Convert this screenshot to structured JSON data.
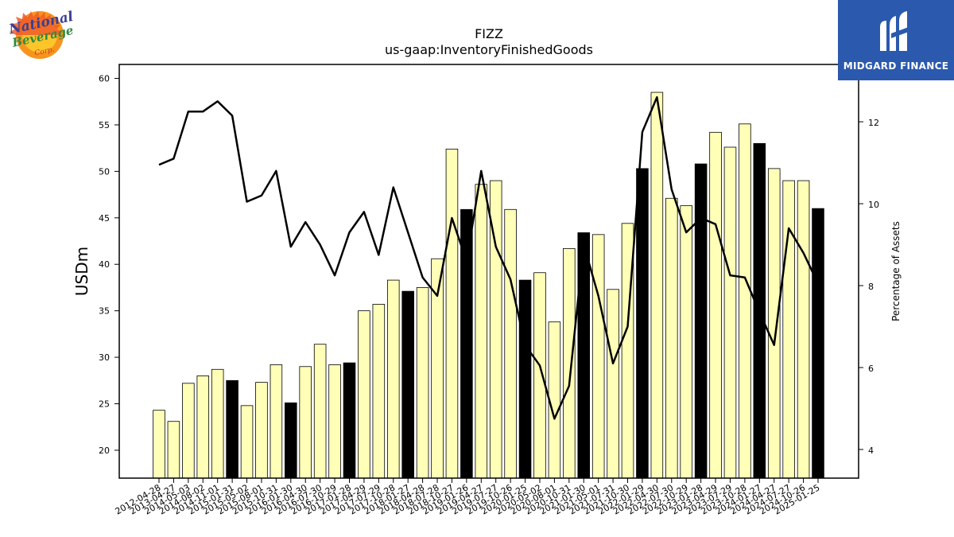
{
  "brand": {
    "corner_logo_text": "MIDGARD FINANCE",
    "corner_logo_bg": "#2b59ad",
    "company_logo_text": "National Beverage Corp."
  },
  "chart_data": {
    "type": "bar+line",
    "title": "FIZZ",
    "subtitle": "us-gaap:InventoryFinishedGoods",
    "ylabel": "USDm",
    "y2label": "Percentage of Assets",
    "ylim": [
      17,
      61.5
    ],
    "y2lim": [
      3.3,
      13.4
    ],
    "yticks": [
      20,
      25,
      30,
      35,
      40,
      45,
      50,
      55,
      60
    ],
    "y2ticks": [
      4,
      6,
      8,
      10,
      12
    ],
    "colors": {
      "bar_normal": "#ffffb8",
      "bar_highlight": "#000000",
      "line": "#000000"
    },
    "categories": [
      "2012-04-28",
      "2013-04-27",
      "2014-05-03",
      "2014-08-02",
      "2014-11-01",
      "2015-01-31",
      "2015-05-02",
      "2015-08-01",
      "2015-10-31",
      "2016-01-30",
      "2016-04-30",
      "2016-07-30",
      "2016-10-29",
      "2017-01-28",
      "2017-04-29",
      "2017-07-29",
      "2017-10-28",
      "2018-01-27",
      "2018-04-28",
      "2018-07-28",
      "2018-10-27",
      "2019-01-26",
      "2019-04-27",
      "2019-07-27",
      "2019-10-26",
      "2020-01-25",
      "2020-05-02",
      "2020-08-01",
      "2020-10-31",
      "2021-01-30",
      "2021-05-01",
      "2021-07-31",
      "2021-10-30",
      "2022-01-29",
      "2022-04-30",
      "2022-07-30",
      "2022-10-29",
      "2023-01-28",
      "2023-04-29",
      "2023-07-29",
      "2023-10-28",
      "2024-01-27",
      "2024-04-27",
      "2024-07-27",
      "2024-10-26",
      "2025-01-25"
    ],
    "values": [
      24.3,
      23.1,
      27.2,
      28.0,
      28.7,
      27.5,
      24.8,
      27.3,
      29.2,
      25.1,
      29.0,
      31.4,
      29.2,
      29.4,
      35.0,
      35.7,
      38.3,
      37.1,
      37.5,
      40.6,
      52.4,
      45.9,
      48.6,
      49.0,
      45.9,
      38.3,
      39.1,
      33.8,
      41.7,
      43.4,
      43.2,
      37.3,
      44.4,
      50.3,
      58.5,
      47.1,
      46.3,
      50.8,
      54.2,
      52.6,
      55.1,
      53.0,
      50.3,
      49.0,
      49.0,
      46.0
    ],
    "highlighted": [
      false,
      false,
      false,
      false,
      false,
      true,
      false,
      false,
      false,
      true,
      false,
      false,
      false,
      true,
      false,
      false,
      false,
      true,
      false,
      false,
      false,
      true,
      false,
      false,
      false,
      true,
      false,
      false,
      false,
      true,
      false,
      false,
      false,
      true,
      false,
      false,
      false,
      true,
      false,
      false,
      false,
      true,
      false,
      false,
      false,
      true
    ],
    "percentage_of_assets": [
      10.95,
      11.1,
      12.25,
      12.25,
      12.5,
      12.15,
      10.05,
      10.2,
      10.8,
      8.95,
      9.55,
      9.0,
      8.25,
      9.3,
      9.8,
      8.75,
      10.4,
      9.3,
      8.2,
      7.75,
      9.65,
      8.6,
      10.8,
      8.95,
      8.15,
      6.55,
      6.05,
      4.75,
      5.55,
      9.0,
      7.75,
      6.1,
      7.0,
      11.75,
      12.6,
      10.35,
      9.3,
      9.65,
      9.5,
      8.25,
      8.2,
      7.35,
      6.55,
      9.4,
      8.8,
      8.05
    ]
  }
}
